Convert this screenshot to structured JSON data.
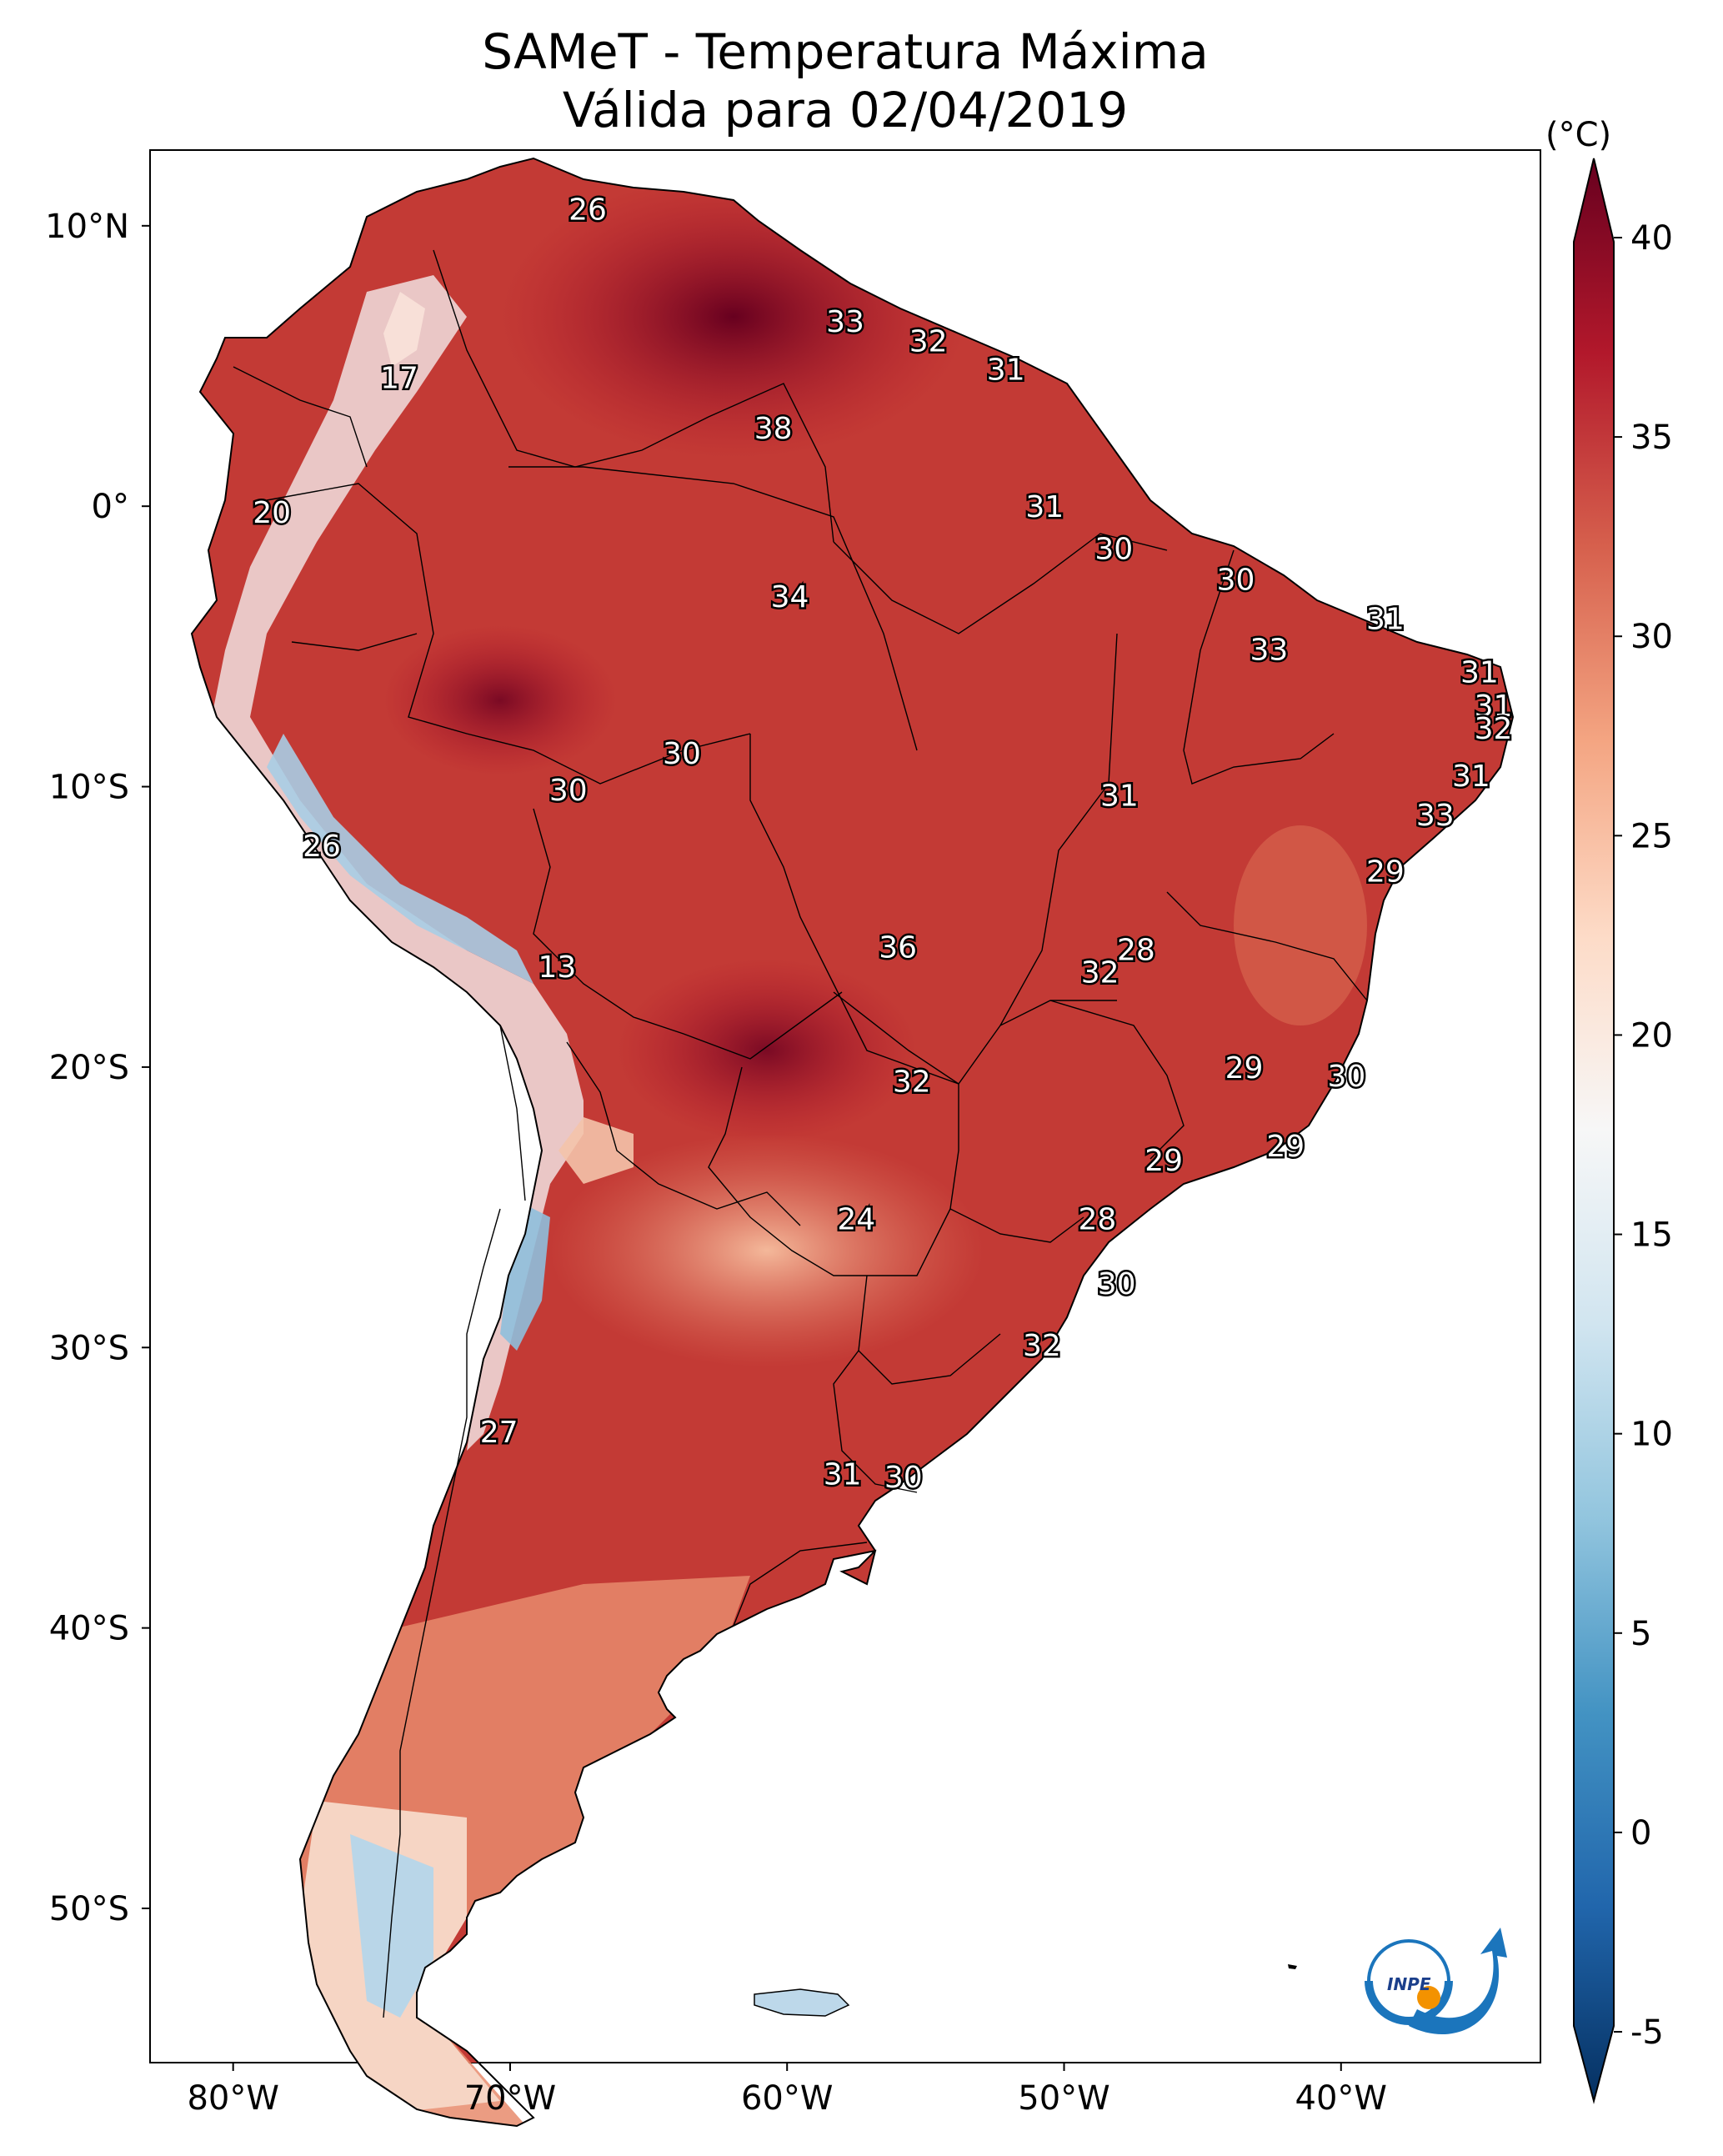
{
  "title": "SAMeT - Temperatura Máxima",
  "subtitle": "Válida para 02/04/2019",
  "colorbar": {
    "unit_label": "(°C)",
    "ticks": [
      "40",
      "35",
      "30",
      "25",
      "20",
      "15",
      "10",
      "5",
      "0",
      "-5"
    ],
    "colors": [
      "#67001f",
      "#b2182b",
      "#d6604d",
      "#f4a582",
      "#fddbc7",
      "#f7f7f7",
      "#d1e5f0",
      "#92c5de",
      "#4393c3",
      "#2166ac",
      "#053061"
    ],
    "range": [
      -5,
      40
    ]
  },
  "axes": {
    "lon_labels": [
      "80°W",
      "70°W",
      "60°W",
      "50°W",
      "40°W"
    ],
    "lat_labels": [
      "10°N",
      "0°",
      "10°S",
      "20°S",
      "30°S",
      "40°S",
      "50°S"
    ]
  },
  "temperature_labels": [
    {
      "value": "26",
      "lon": -67.2,
      "lat": 10.6
    },
    {
      "value": "33",
      "lon": -57.9,
      "lat": 6.6
    },
    {
      "value": "32",
      "lon": -54.9,
      "lat": 5.9
    },
    {
      "value": "31",
      "lon": -52.1,
      "lat": 4.9
    },
    {
      "value": "17",
      "lon": -74.0,
      "lat": 4.6
    },
    {
      "value": "38",
      "lon": -60.5,
      "lat": 2.8
    },
    {
      "value": "20",
      "lon": -78.6,
      "lat": -0.2
    },
    {
      "value": "31",
      "lon": -50.7,
      "lat": 0.0
    },
    {
      "value": "30",
      "lon": -48.2,
      "lat": -1.5
    },
    {
      "value": "30",
      "lon": -43.8,
      "lat": -2.6
    },
    {
      "value": "34",
      "lon": -59.9,
      "lat": -3.2
    },
    {
      "value": "31",
      "lon": -38.4,
      "lat": -4.0
    },
    {
      "value": "33",
      "lon": -42.6,
      "lat": -5.1
    },
    {
      "value": "31",
      "lon": -35.0,
      "lat": -5.9
    },
    {
      "value": "31",
      "lon": -34.5,
      "lat": -7.1
    },
    {
      "value": "32",
      "lon": -34.5,
      "lat": -7.9
    },
    {
      "value": "30",
      "lon": -63.8,
      "lat": -8.8
    },
    {
      "value": "31",
      "lon": -35.3,
      "lat": -9.6
    },
    {
      "value": "30",
      "lon": -67.9,
      "lat": -10.1
    },
    {
      "value": "31",
      "lon": -48.0,
      "lat": -10.3
    },
    {
      "value": "33",
      "lon": -36.6,
      "lat": -11.0
    },
    {
      "value": "26",
      "lon": -76.8,
      "lat": -12.1
    },
    {
      "value": "29",
      "lon": -38.4,
      "lat": -13.0
    },
    {
      "value": "36",
      "lon": -56.0,
      "lat": -15.7
    },
    {
      "value": "28",
      "lon": -47.4,
      "lat": -15.8
    },
    {
      "value": "32",
      "lon": -48.7,
      "lat": -16.6
    },
    {
      "value": "13",
      "lon": -68.3,
      "lat": -16.4
    },
    {
      "value": "29",
      "lon": -43.5,
      "lat": -20.0
    },
    {
      "value": "30",
      "lon": -39.8,
      "lat": -20.3
    },
    {
      "value": "32",
      "lon": -55.5,
      "lat": -20.5
    },
    {
      "value": "29",
      "lon": -42.0,
      "lat": -22.8
    },
    {
      "value": "29",
      "lon": -46.4,
      "lat": -23.3
    },
    {
      "value": "24",
      "lon": -57.5,
      "lat": -25.4
    },
    {
      "value": "28",
      "lon": -48.8,
      "lat": -25.4
    },
    {
      "value": "30",
      "lon": -48.1,
      "lat": -27.7
    },
    {
      "value": "32",
      "lon": -50.8,
      "lat": -29.9
    },
    {
      "value": "27",
      "lon": -70.4,
      "lat": -33.0
    },
    {
      "value": "31",
      "lon": -58.0,
      "lat": -34.5
    },
    {
      "value": "30",
      "lon": -55.8,
      "lat": -34.6
    }
  ],
  "logo": {
    "text": "INPE"
  }
}
